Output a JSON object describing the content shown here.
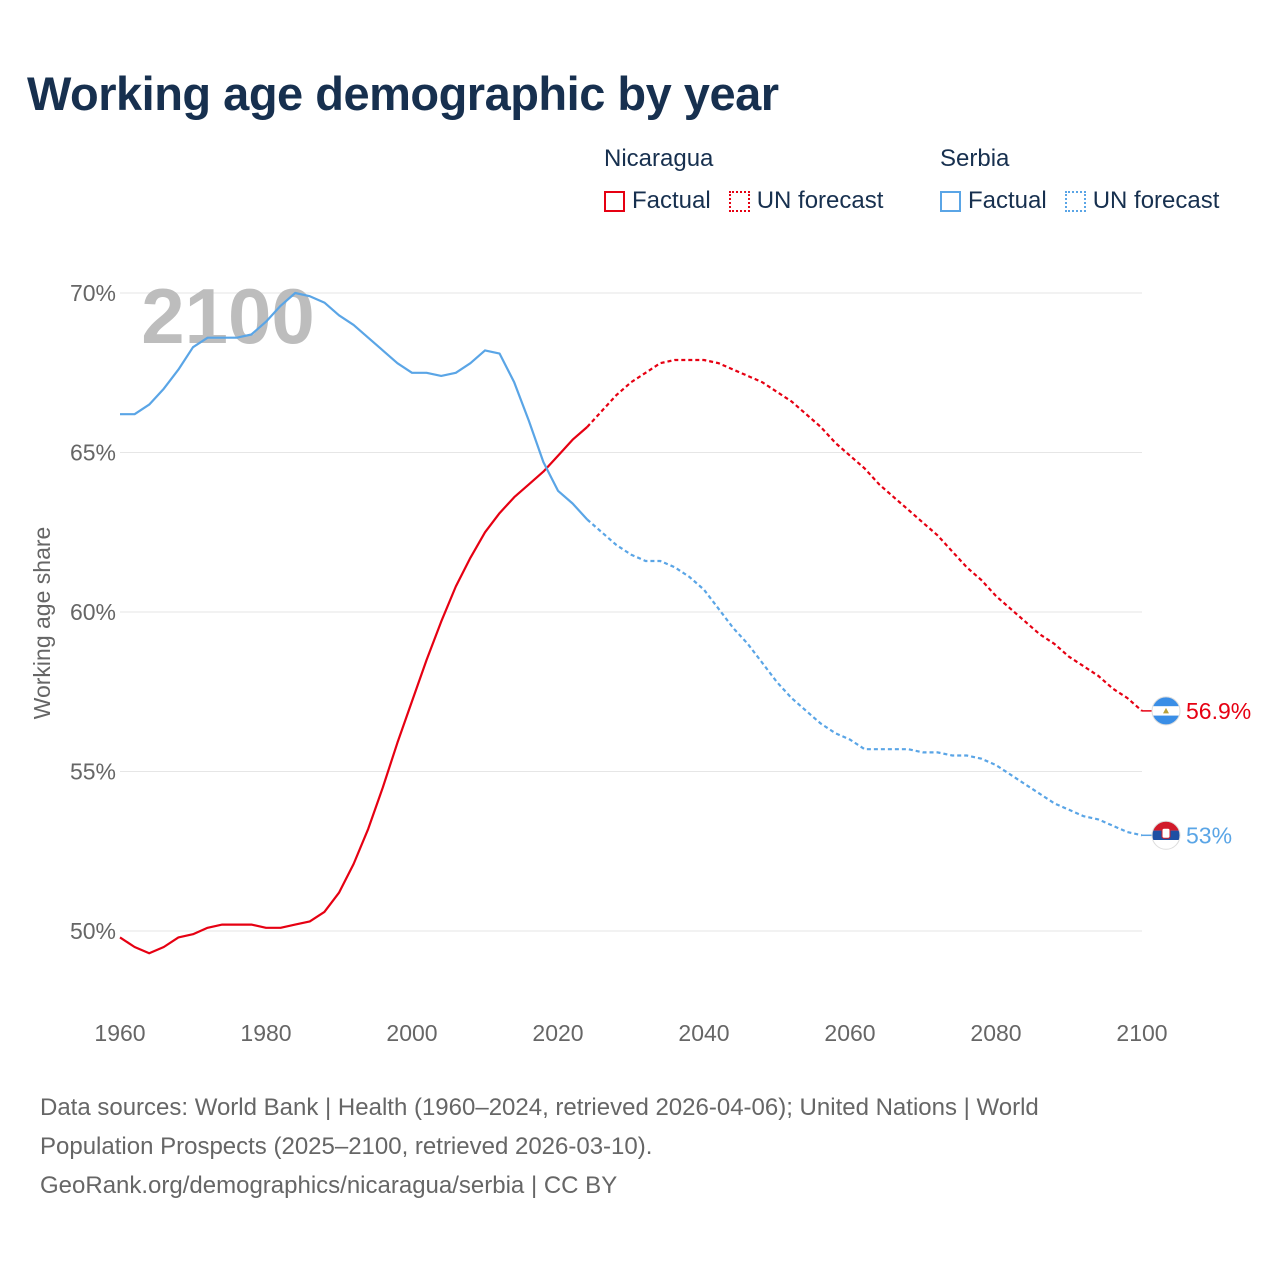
{
  "title": "Working age demographic by year",
  "legend": {
    "groups": [
      {
        "name": "Nicaragua",
        "factual_label": "Factual",
        "forecast_label": "UN forecast",
        "color": "#e60012"
      },
      {
        "name": "Serbia",
        "factual_label": "Factual",
        "forecast_label": "UN forecast",
        "color": "#5aa5e6"
      }
    ]
  },
  "footer": {
    "line1": "Data sources: World Bank | Health (1960–2024, retrieved 2026-04-06); United Nations | World",
    "line2": "Population Prospects (2025–2100, retrieved 2026-03-10).",
    "line3": "GeoRank.org/demographics/nicaragua/serbia | CC BY"
  },
  "chart_data": {
    "type": "line",
    "title": "Working age demographic by year",
    "xlabel": "",
    "ylabel": "Working age share",
    "xlim": [
      1960,
      2100
    ],
    "ylim": [
      48,
      70.5
    ],
    "x_ticks": [
      1960,
      1980,
      2000,
      2020,
      2040,
      2060,
      2080,
      2100
    ],
    "y_ticks": [
      50,
      55,
      60,
      65,
      70
    ],
    "y_tick_labels": [
      "50%",
      "55%",
      "60%",
      "65%",
      "70%"
    ],
    "year_watermark": "2100",
    "factual_end_year": 2024,
    "grid": true,
    "series": [
      {
        "name": "Nicaragua",
        "color": "#e60012",
        "end_label": "56.9%",
        "points": [
          [
            1960,
            49.8
          ],
          [
            1962,
            49.5
          ],
          [
            1964,
            49.3
          ],
          [
            1966,
            49.5
          ],
          [
            1968,
            49.8
          ],
          [
            1970,
            49.9
          ],
          [
            1972,
            50.1
          ],
          [
            1974,
            50.2
          ],
          [
            1976,
            50.2
          ],
          [
            1978,
            50.2
          ],
          [
            1980,
            50.1
          ],
          [
            1982,
            50.1
          ],
          [
            1984,
            50.2
          ],
          [
            1986,
            50.3
          ],
          [
            1988,
            50.6
          ],
          [
            1990,
            51.2
          ],
          [
            1992,
            52.1
          ],
          [
            1994,
            53.2
          ],
          [
            1996,
            54.5
          ],
          [
            1998,
            55.9
          ],
          [
            2000,
            57.2
          ],
          [
            2002,
            58.5
          ],
          [
            2004,
            59.7
          ],
          [
            2006,
            60.8
          ],
          [
            2008,
            61.7
          ],
          [
            2010,
            62.5
          ],
          [
            2012,
            63.1
          ],
          [
            2014,
            63.6
          ],
          [
            2016,
            64.0
          ],
          [
            2018,
            64.4
          ],
          [
            2020,
            64.9
          ],
          [
            2022,
            65.4
          ],
          [
            2024,
            65.8
          ],
          [
            2026,
            66.3
          ],
          [
            2028,
            66.8
          ],
          [
            2030,
            67.2
          ],
          [
            2032,
            67.5
          ],
          [
            2034,
            67.8
          ],
          [
            2036,
            67.9
          ],
          [
            2038,
            67.9
          ],
          [
            2040,
            67.9
          ],
          [
            2042,
            67.8
          ],
          [
            2044,
            67.6
          ],
          [
            2046,
            67.4
          ],
          [
            2048,
            67.2
          ],
          [
            2050,
            66.9
          ],
          [
            2052,
            66.6
          ],
          [
            2054,
            66.2
          ],
          [
            2056,
            65.8
          ],
          [
            2058,
            65.3
          ],
          [
            2060,
            64.9
          ],
          [
            2062,
            64.5
          ],
          [
            2064,
            64.0
          ],
          [
            2066,
            63.6
          ],
          [
            2068,
            63.2
          ],
          [
            2070,
            62.8
          ],
          [
            2072,
            62.4
          ],
          [
            2074,
            61.9
          ],
          [
            2076,
            61.4
          ],
          [
            2078,
            61.0
          ],
          [
            2080,
            60.5
          ],
          [
            2082,
            60.1
          ],
          [
            2084,
            59.7
          ],
          [
            2086,
            59.3
          ],
          [
            2088,
            59.0
          ],
          [
            2090,
            58.6
          ],
          [
            2092,
            58.3
          ],
          [
            2094,
            58.0
          ],
          [
            2096,
            57.6
          ],
          [
            2098,
            57.3
          ],
          [
            2100,
            56.9
          ]
        ]
      },
      {
        "name": "Serbia",
        "color": "#5aa5e6",
        "end_label": "53%",
        "points": [
          [
            1960,
            66.2
          ],
          [
            1962,
            66.2
          ],
          [
            1964,
            66.5
          ],
          [
            1966,
            67.0
          ],
          [
            1968,
            67.6
          ],
          [
            1970,
            68.3
          ],
          [
            1972,
            68.6
          ],
          [
            1974,
            68.6
          ],
          [
            1976,
            68.6
          ],
          [
            1978,
            68.7
          ],
          [
            1980,
            69.1
          ],
          [
            1982,
            69.6
          ],
          [
            1984,
            70.0
          ],
          [
            1986,
            69.9
          ],
          [
            1988,
            69.7
          ],
          [
            1990,
            69.3
          ],
          [
            1992,
            69.0
          ],
          [
            1994,
            68.6
          ],
          [
            1996,
            68.2
          ],
          [
            1998,
            67.8
          ],
          [
            2000,
            67.5
          ],
          [
            2002,
            67.5
          ],
          [
            2004,
            67.4
          ],
          [
            2006,
            67.5
          ],
          [
            2008,
            67.8
          ],
          [
            2010,
            68.2
          ],
          [
            2012,
            68.1
          ],
          [
            2014,
            67.2
          ],
          [
            2016,
            66.0
          ],
          [
            2018,
            64.7
          ],
          [
            2020,
            63.8
          ],
          [
            2022,
            63.4
          ],
          [
            2024,
            62.9
          ],
          [
            2026,
            62.5
          ],
          [
            2028,
            62.1
          ],
          [
            2030,
            61.8
          ],
          [
            2032,
            61.6
          ],
          [
            2034,
            61.6
          ],
          [
            2036,
            61.4
          ],
          [
            2038,
            61.1
          ],
          [
            2040,
            60.7
          ],
          [
            2042,
            60.1
          ],
          [
            2044,
            59.5
          ],
          [
            2046,
            59.0
          ],
          [
            2048,
            58.4
          ],
          [
            2050,
            57.8
          ],
          [
            2052,
            57.3
          ],
          [
            2054,
            56.9
          ],
          [
            2056,
            56.5
          ],
          [
            2058,
            56.2
          ],
          [
            2060,
            56.0
          ],
          [
            2062,
            55.7
          ],
          [
            2064,
            55.7
          ],
          [
            2066,
            55.7
          ],
          [
            2068,
            55.7
          ],
          [
            2070,
            55.6
          ],
          [
            2072,
            55.6
          ],
          [
            2074,
            55.5
          ],
          [
            2076,
            55.5
          ],
          [
            2078,
            55.4
          ],
          [
            2080,
            55.2
          ],
          [
            2082,
            54.9
          ],
          [
            2084,
            54.6
          ],
          [
            2086,
            54.3
          ],
          [
            2088,
            54.0
          ],
          [
            2090,
            53.8
          ],
          [
            2092,
            53.6
          ],
          [
            2094,
            53.5
          ],
          [
            2096,
            53.3
          ],
          [
            2098,
            53.1
          ],
          [
            2100,
            53.0
          ]
        ]
      }
    ]
  }
}
